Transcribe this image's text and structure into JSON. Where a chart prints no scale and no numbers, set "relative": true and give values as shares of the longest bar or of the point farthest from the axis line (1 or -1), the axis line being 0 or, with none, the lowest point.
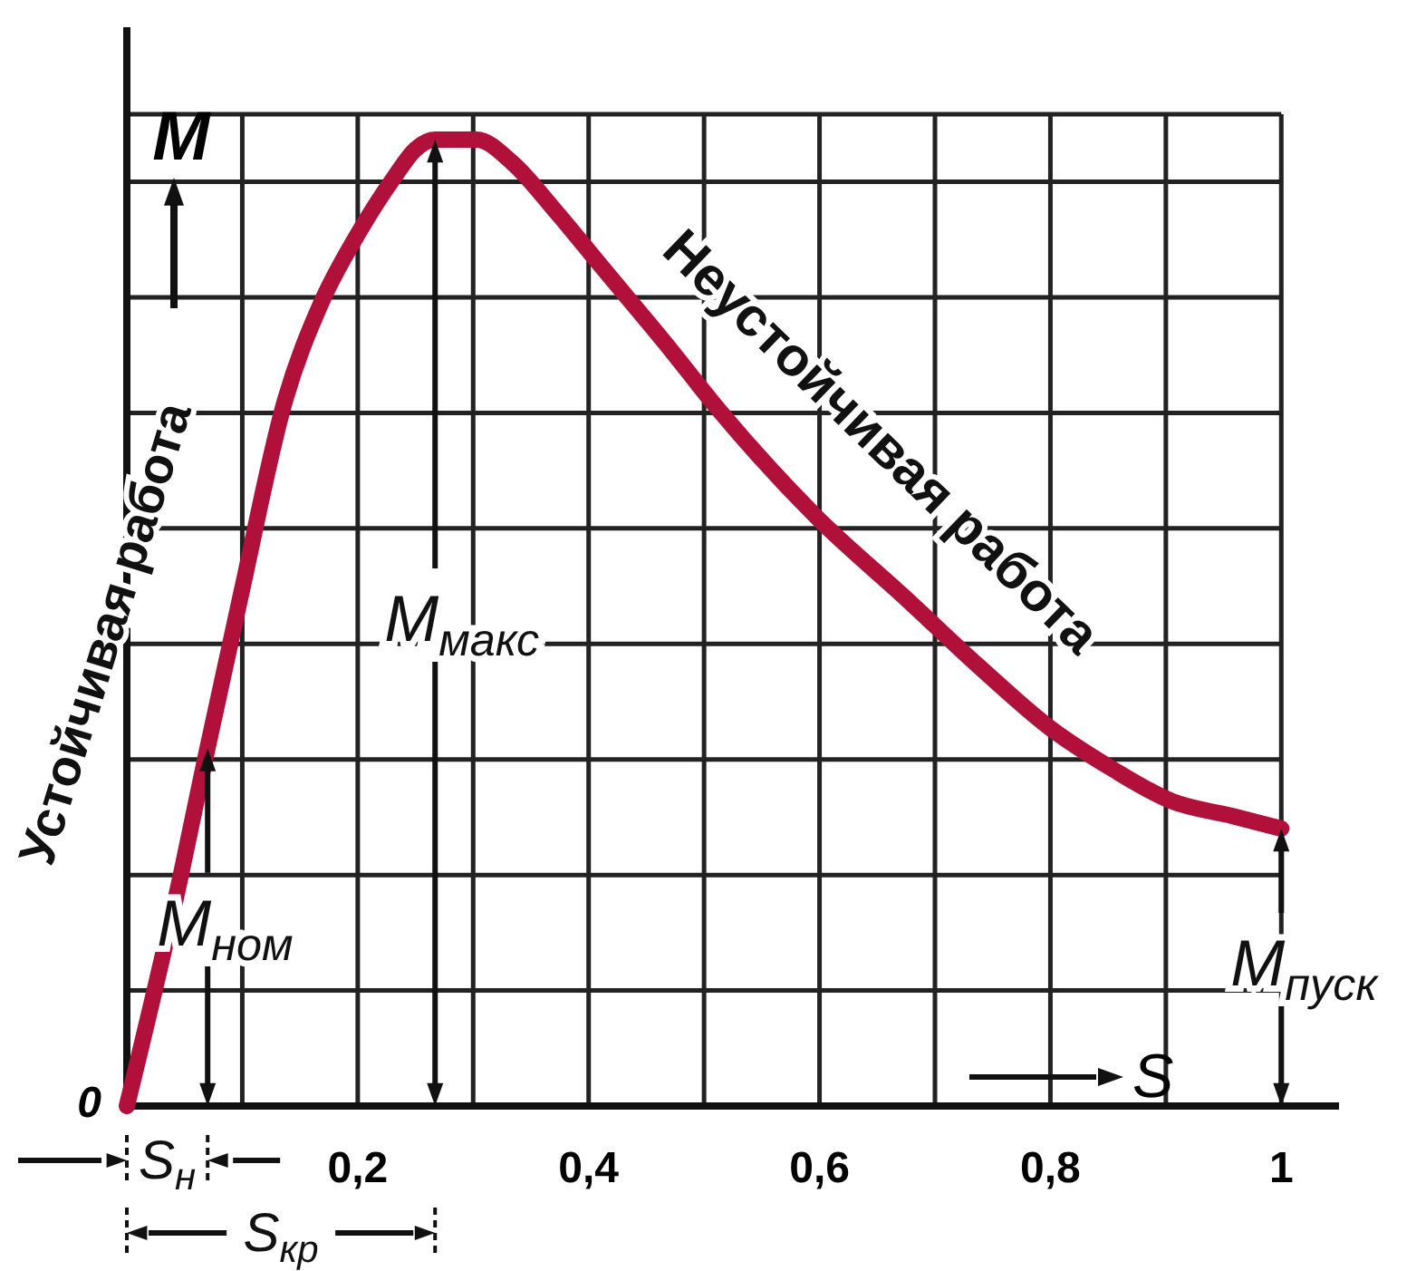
{
  "chart_data": {
    "type": "line",
    "relative": true,
    "xlabel": "S",
    "ylabel": "M",
    "x": [
      0,
      0.047,
      0.068,
      0.099,
      0.137,
      0.168,
      0.199,
      0.231,
      0.25,
      0.267,
      0.303,
      0.334,
      0.372,
      0.413,
      0.466,
      0.513,
      0.597,
      0.675,
      0.738,
      0.801,
      0.852,
      0.906,
      0.958,
      1
    ],
    "series": [
      {
        "color": "#b0103a",
        "values": [
          0,
          0.24,
          0.36,
          0.53,
          0.73,
          0.83,
          0.9,
          0.96,
          0.99,
          1,
          1,
          0.976,
          0.925,
          0.866,
          0.79,
          0.72,
          0.61,
          0.525,
          0.455,
          0.39,
          0.35,
          0.315,
          0.3,
          0.287
        ]
      }
    ],
    "xlim": [
      0,
      1.05
    ],
    "xticks": [
      {
        "value": 0.1,
        "label": null
      },
      {
        "value": 0.2,
        "label": "0,2"
      },
      {
        "value": 0.3,
        "label": null
      },
      {
        "value": 0.4,
        "label": "0,4"
      },
      {
        "value": 0.5,
        "label": null
      },
      {
        "value": 0.6,
        "label": "0,6"
      },
      {
        "value": 0.7,
        "label": null
      },
      {
        "value": 0.8,
        "label": "0,8"
      },
      {
        "value": 0.9,
        "label": null
      },
      {
        "value": 1,
        "label": "1"
      }
    ],
    "grid": true,
    "marker": "none",
    "line_style": "solid",
    "annotations": [
      "Устойчивая работа",
      "Неустойчивая работа",
      "S$_{н}$",
      "S$_{кр}$",
      "M$_{макс}$",
      {
        "text": "0",
        "x": 0,
        "y": 0
      },
      {
        "text": "M$_{ном}$",
        "x": 0.07,
        "y": 0.37
      },
      {
        "text": "M$_{пуск}$",
        "x": 1,
        "y": 0.287
      }
    ]
  }
}
